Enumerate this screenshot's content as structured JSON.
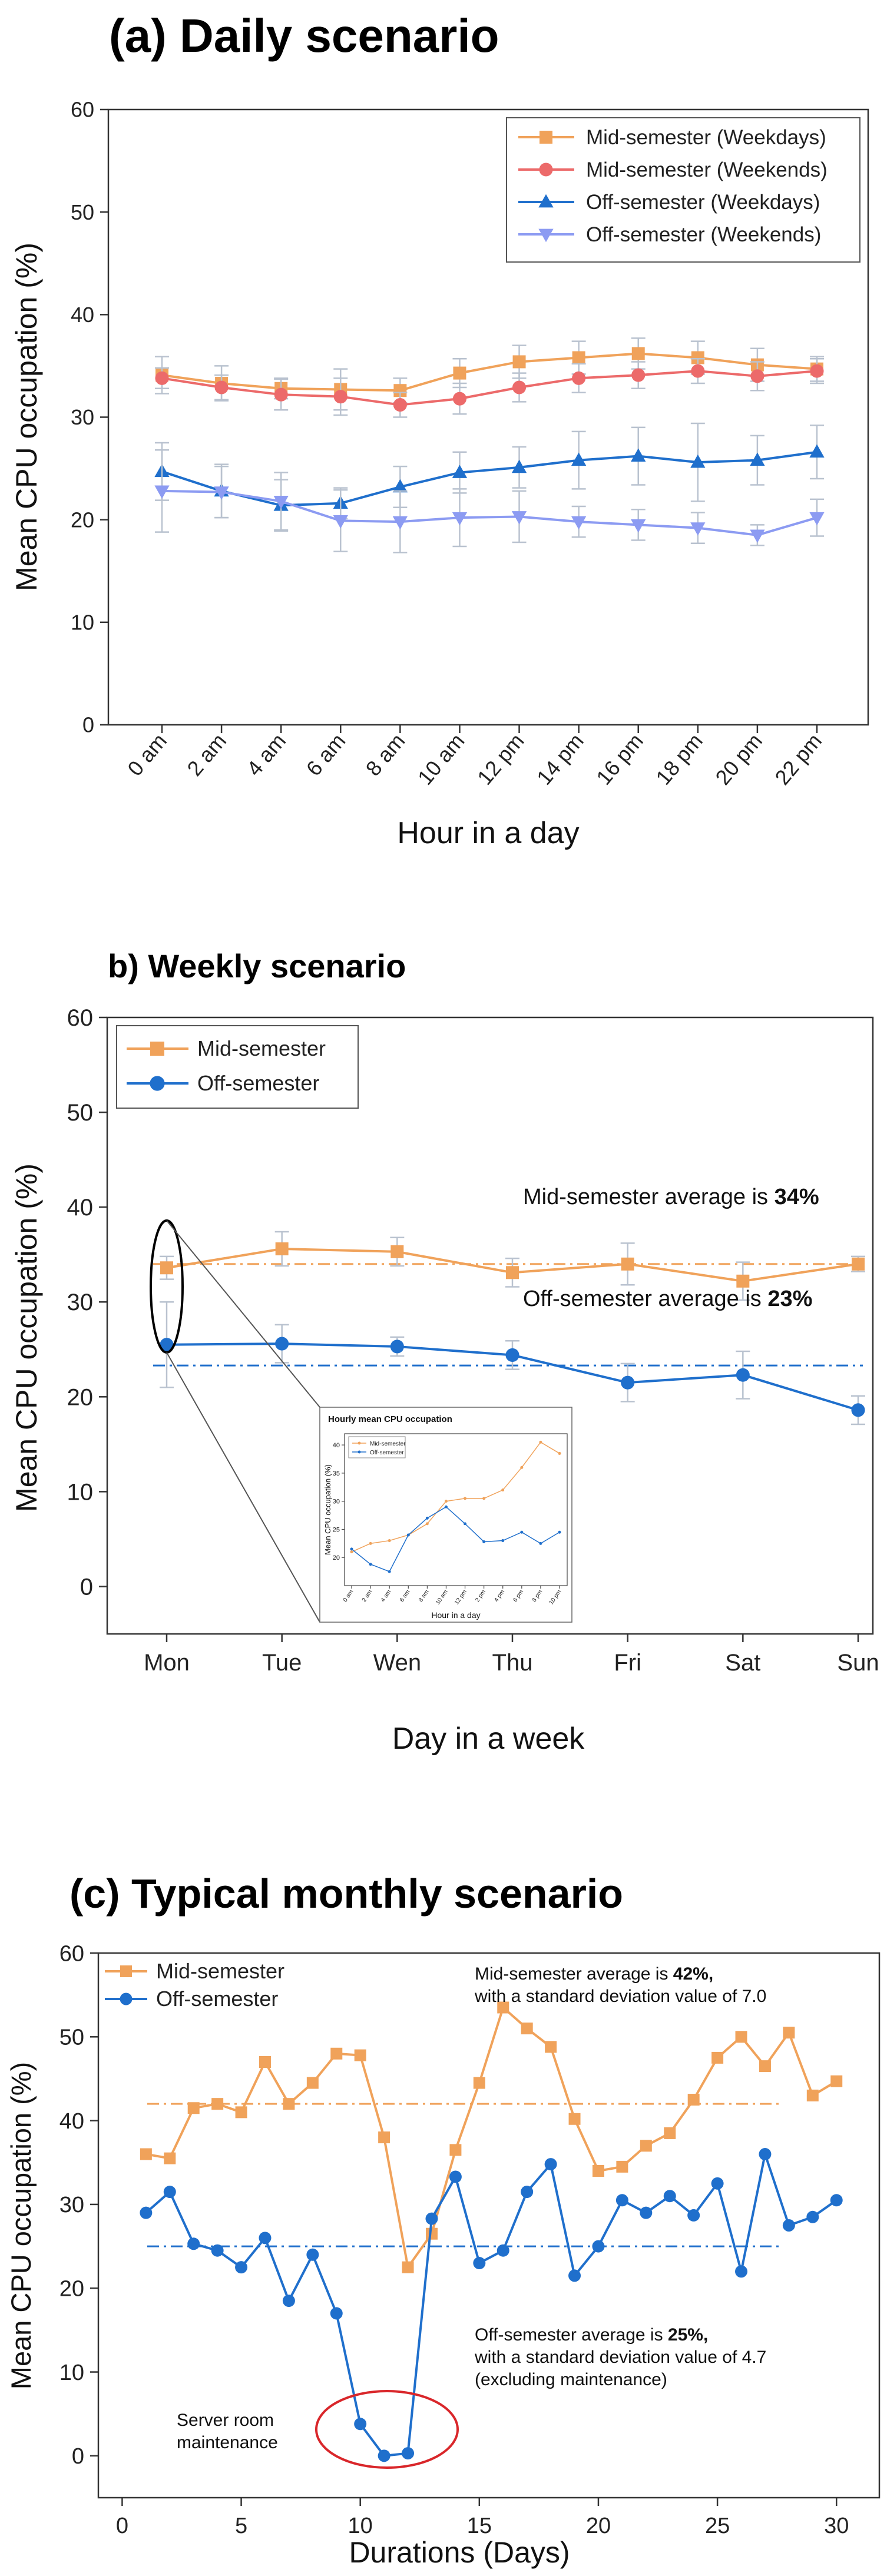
{
  "colors": {
    "mid": "#F0A25A",
    "mid_weekend": "#EC6A6A",
    "off": "#1F6FCC",
    "off_weekend": "#8C9BF2",
    "errorbar": "#B9C2CF",
    "ellipse_red": "#D9262A"
  },
  "chart_data": [
    {
      "id": "a",
      "type": "line",
      "title": "(a) Daily scenario",
      "xlabel": "Hour in a day",
      "ylabel": "Mean CPU occupation (%)",
      "ylim": [
        0,
        60
      ],
      "yticks": [
        0,
        10,
        20,
        30,
        40,
        50,
        60
      ],
      "categories": [
        "0 am",
        "2 am",
        "4 am",
        "6 am",
        "8 am",
        "10 am",
        "12 pm",
        "14 pm",
        "16 pm",
        "18 pm",
        "20 pm",
        "22 pm"
      ],
      "legend_position": "top-right",
      "series": [
        {
          "name": "Mid-semester (Weekdays)",
          "marker": "square",
          "color_key": "mid",
          "values": [
            34.1,
            33.3,
            32.8,
            32.7,
            32.6,
            34.3,
            35.4,
            35.8,
            36.2,
            35.8,
            35.1,
            34.7
          ],
          "errors": [
            1.8,
            1.7,
            1.0,
            2.0,
            1.2,
            1.4,
            1.6,
            1.6,
            1.5,
            1.6,
            1.6,
            1.2
          ]
        },
        {
          "name": "Mid-semester (Weekends)",
          "marker": "circle",
          "color_key": "mid_weekend",
          "values": [
            33.8,
            32.9,
            32.2,
            32.0,
            31.2,
            31.8,
            32.9,
            33.8,
            34.1,
            34.5,
            34.0,
            34.5
          ],
          "errors": [
            1.0,
            1.2,
            1.5,
            1.8,
            1.2,
            1.5,
            1.4,
            1.4,
            1.3,
            1.2,
            1.4,
            1.2
          ]
        },
        {
          "name": "Off-semester (Weekdays)",
          "marker": "triangle",
          "color_key": "off",
          "values": [
            24.7,
            22.8,
            21.4,
            21.6,
            23.2,
            24.6,
            25.1,
            25.8,
            26.2,
            25.6,
            25.8,
            26.6
          ],
          "errors": [
            2.8,
            2.6,
            2.5,
            1.5,
            2.0,
            2.0,
            2.0,
            2.8,
            2.8,
            3.8,
            2.4,
            2.6
          ]
        },
        {
          "name": "Off-semester (Weekends)",
          "marker": "triangle-down",
          "color_key": "off_weekend",
          "values": [
            22.8,
            22.7,
            21.8,
            19.9,
            19.8,
            20.2,
            20.3,
            19.8,
            19.5,
            19.2,
            18.5,
            20.2
          ],
          "errors": [
            4.0,
            2.5,
            2.8,
            3.0,
            3.0,
            2.8,
            2.5,
            1.5,
            1.5,
            1.5,
            1.0,
            1.8
          ]
        }
      ]
    },
    {
      "id": "b",
      "type": "line",
      "title": "b) Weekly scenario",
      "xlabel": "Day in a week",
      "ylabel": "Mean CPU occupation (%)",
      "ylim": [
        -5,
        60
      ],
      "yticks": [
        0,
        10,
        20,
        30,
        40,
        50,
        60
      ],
      "categories": [
        "Mon",
        "Tue",
        "Wen",
        "Thu",
        "Fri",
        "Sat",
        "Sun"
      ],
      "legend_position": "top-left",
      "series": [
        {
          "name": "Mid-semester",
          "marker": "square",
          "color_key": "mid",
          "values": [
            33.6,
            35.6,
            35.3,
            33.1,
            34.0,
            32.2,
            34.0
          ],
          "errors": [
            1.2,
            1.8,
            1.5,
            1.5,
            2.2,
            2.0,
            0.8
          ],
          "average": 34
        },
        {
          "name": "Off-semester",
          "marker": "circle",
          "color_key": "off",
          "values": [
            25.5,
            25.6,
            25.3,
            24.4,
            21.5,
            22.3,
            18.6
          ],
          "errors": [
            4.5,
            2.0,
            1.0,
            1.5,
            2.0,
            2.5,
            1.5
          ],
          "average": 23.3
        }
      ],
      "annotations": [
        {
          "prefix": "Mid-semester average is ",
          "bold": "34%"
        },
        {
          "prefix": "Off-semester average is ",
          "bold": "23%"
        }
      ],
      "inset": {
        "title": "Hourly mean CPU occupation",
        "xlabel": "Hour in a day",
        "ylabel": "Mean CPU occupation (%)",
        "ylim": [
          15,
          42
        ],
        "yticks": [
          20,
          25,
          30,
          35,
          40
        ],
        "categories": [
          "0 am",
          "2 am",
          "4 am",
          "6 am",
          "8 am",
          "10 am",
          "12 pm",
          "2 pm",
          "4 pm",
          "6 pm",
          "8 pm",
          "10 pm"
        ],
        "series": [
          {
            "name": "Mid-semester",
            "color_key": "mid",
            "values": [
              21.0,
              22.5,
              23.0,
              24.0,
              26.0,
              30.0,
              30.5,
              30.5,
              32.0,
              36.0,
              40.5,
              38.5
            ]
          },
          {
            "name": "Off-semester",
            "color_key": "off",
            "values": [
              21.5,
              18.8,
              17.5,
              24.0,
              27.0,
              29.0,
              26.0,
              22.8,
              23.0,
              24.5,
              22.5,
              24.5
            ]
          }
        ]
      }
    },
    {
      "id": "c",
      "type": "line",
      "title": "(c) Typical monthly scenario",
      "xlabel": "Durations (Days)",
      "ylabel": "Mean CPU occupation (%)",
      "xlim": [
        -1,
        31.8
      ],
      "xticks": [
        0,
        5,
        10,
        15,
        20,
        25,
        30
      ],
      "ylim": [
        -5,
        60
      ],
      "yticks": [
        0,
        10,
        20,
        30,
        40,
        50,
        60
      ],
      "legend_position": "top-left",
      "series": [
        {
          "name": "Mid-semester",
          "marker": "square",
          "color_key": "mid",
          "x": [
            1,
            2,
            3,
            4,
            5,
            6,
            7,
            8,
            9,
            10,
            11,
            12,
            13,
            14,
            15,
            16,
            17,
            18,
            19,
            20,
            21,
            22,
            23,
            24,
            25,
            26,
            27,
            28,
            29,
            30
          ],
          "values": [
            36.0,
            35.5,
            41.5,
            42.0,
            41.0,
            47.0,
            42.0,
            44.5,
            48.0,
            47.8,
            38.0,
            22.5,
            26.5,
            36.5,
            44.5,
            53.5,
            51.0,
            48.8,
            40.2,
            34.0,
            34.5,
            37.0,
            38.5,
            42.5,
            47.5,
            50.0,
            46.5,
            50.5,
            43.0,
            44.7
          ],
          "average": 42
        },
        {
          "name": "Off-semester",
          "marker": "circle",
          "color_key": "off",
          "x": [
            1,
            2,
            3,
            4,
            5,
            6,
            7,
            8,
            9,
            10,
            11,
            12,
            13,
            14,
            15,
            16,
            17,
            18,
            19,
            20,
            21,
            22,
            23,
            24,
            25,
            26,
            27,
            28,
            29,
            30
          ],
          "values": [
            29.0,
            31.5,
            25.3,
            24.5,
            22.5,
            26.0,
            18.5,
            24.0,
            17.0,
            3.8,
            0.0,
            0.3,
            28.3,
            33.3,
            23.0,
            24.5,
            31.5,
            34.8,
            21.5,
            25.0,
            30.5,
            29.0,
            31.0,
            28.7,
            32.5,
            22.0,
            36.0,
            27.5,
            28.5,
            30.5
          ],
          "average": 25
        }
      ],
      "annotations": [
        {
          "prefix": "Mid-semester average is ",
          "bold": "42%,",
          "line2": "with a standard deviation value of 7.0"
        },
        {
          "prefix": "Off-semester average is ",
          "bold": "25%,",
          "line2": "with a standard deviation value of 4.7",
          "line3": "(excluding maintenance)"
        },
        {
          "line1": "Server room",
          "line2": "maintenance"
        }
      ]
    }
  ]
}
